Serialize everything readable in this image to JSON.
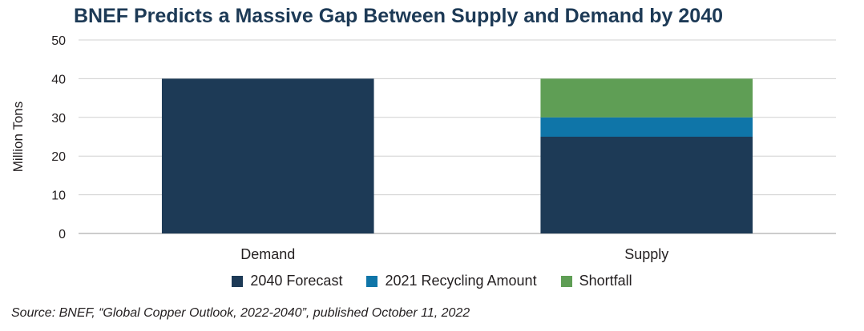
{
  "chart_data": {
    "type": "bar",
    "stacked": true,
    "title": "BNEF Predicts a Massive Gap Between Supply and Demand by 2040",
    "xlabel": "",
    "ylabel": "Million Tons",
    "ylim": [
      0,
      50
    ],
    "yticks": [
      "0",
      "10",
      "20",
      "30",
      "40",
      "50"
    ],
    "categories": [
      "Demand",
      "Supply"
    ],
    "series": [
      {
        "name": "2040 Forecast",
        "color": "#1d3a56",
        "values": [
          40,
          25
        ]
      },
      {
        "name": "2021 Recycling Amount",
        "color": "#0f75a8",
        "values": [
          0,
          5
        ]
      },
      {
        "name": "Shortfall",
        "color": "#5f9e55",
        "values": [
          0,
          10
        ]
      }
    ],
    "grid": true,
    "legend_position": "bottom"
  },
  "source": "Source: BNEF, “Global Copper Outlook, 2022-2040”, published October 11, 2022"
}
